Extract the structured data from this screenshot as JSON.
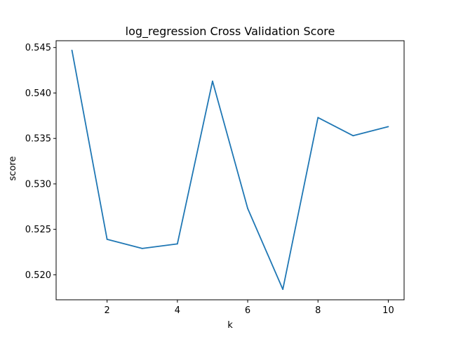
{
  "chart_data": {
    "type": "line",
    "title": "log_regression Cross Validation Score",
    "xlabel": "k",
    "ylabel": "score",
    "x": [
      1,
      2,
      3,
      4,
      5,
      6,
      7,
      8,
      9,
      10
    ],
    "series": [
      {
        "values": [
          0.5447,
          0.5239,
          0.5229,
          0.5234,
          0.5413,
          0.5273,
          0.5184,
          0.5373,
          0.5353,
          0.5363
        ],
        "color": "#1f77b4"
      }
    ],
    "xlim": [
      0.55,
      10.45
    ],
    "ylim": [
      0.51725,
      0.54575
    ],
    "xticks": [
      2,
      4,
      6,
      8,
      10
    ],
    "xtick_labels": [
      "2",
      "4",
      "6",
      "8",
      "10"
    ],
    "yticks": [
      0.52,
      0.525,
      0.53,
      0.535,
      0.54,
      0.545
    ],
    "ytick_labels": [
      "0.520",
      "0.525",
      "0.530",
      "0.535",
      "0.540",
      "0.545"
    ],
    "grid": false,
    "legend": "none"
  }
}
